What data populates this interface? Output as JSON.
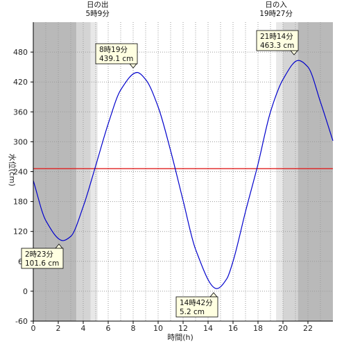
{
  "chart_data": {
    "type": "line",
    "xlabel": "時間(h)",
    "ylabel": "水位(cm)",
    "xlim": [
      0,
      24
    ],
    "ylim": [
      -60,
      540
    ],
    "x_ticks": [
      0,
      2,
      4,
      6,
      8,
      10,
      12,
      14,
      16,
      18,
      20,
      22
    ],
    "y_ticks": [
      -60,
      0,
      60,
      120,
      180,
      240,
      300,
      360,
      420,
      480
    ],
    "grid": true,
    "reference_line": {
      "y": 246,
      "color": "#e02020"
    },
    "series": [
      {
        "color": "#0000cc",
        "x": [
          0,
          1,
          2.383,
          3,
          4,
          5,
          6,
          7,
          8.317,
          9,
          10,
          11,
          12,
          13,
          14.7,
          15.5,
          16,
          17,
          18,
          19,
          20,
          21.233,
          22,
          23,
          24
        ],
        "y": [
          222,
          142,
          101.6,
          110,
          170,
          252,
          336,
          404,
          439.1,
          425,
          370,
          282,
          182,
          84,
          5.2,
          25,
          60,
          160,
          255,
          360,
          425,
          463.3,
          450,
          380,
          302
        ]
      }
    ],
    "extremes": [
      {
        "time_label": "8時19分",
        "value_label": "439.1 cm",
        "x": 8.317,
        "y": 439.1
      },
      {
        "time_label": "21時14分",
        "value_label": "463.3 cm",
        "x": 21.233,
        "y": 463.3
      },
      {
        "time_label": "2時23分",
        "value_label": "101.6 cm",
        "x": 2.383,
        "y": 101.6
      },
      {
        "time_label": "14時42分",
        "value_label": "5.2 cm",
        "x": 14.7,
        "y": 5.2
      }
    ],
    "sun": {
      "sunrise": {
        "title": "日の出",
        "time": "5時9分",
        "x": 5.15
      },
      "sunset": {
        "title": "日の入",
        "time": "19時27分",
        "x": 19.45
      }
    },
    "shading": [
      {
        "from": 0,
        "to": 3.45,
        "color": "#b9b9b9"
      },
      {
        "from": 3.45,
        "to": 4.6,
        "color": "#d4d4d4"
      },
      {
        "from": 4.6,
        "to": 5.15,
        "color": "#e8e8e8"
      },
      {
        "from": 19.45,
        "to": 20.0,
        "color": "#e8e8e8"
      },
      {
        "from": 20.0,
        "to": 21.2,
        "color": "#d4d4d4"
      },
      {
        "from": 21.2,
        "to": 24,
        "color": "#b9b9b9"
      }
    ]
  }
}
